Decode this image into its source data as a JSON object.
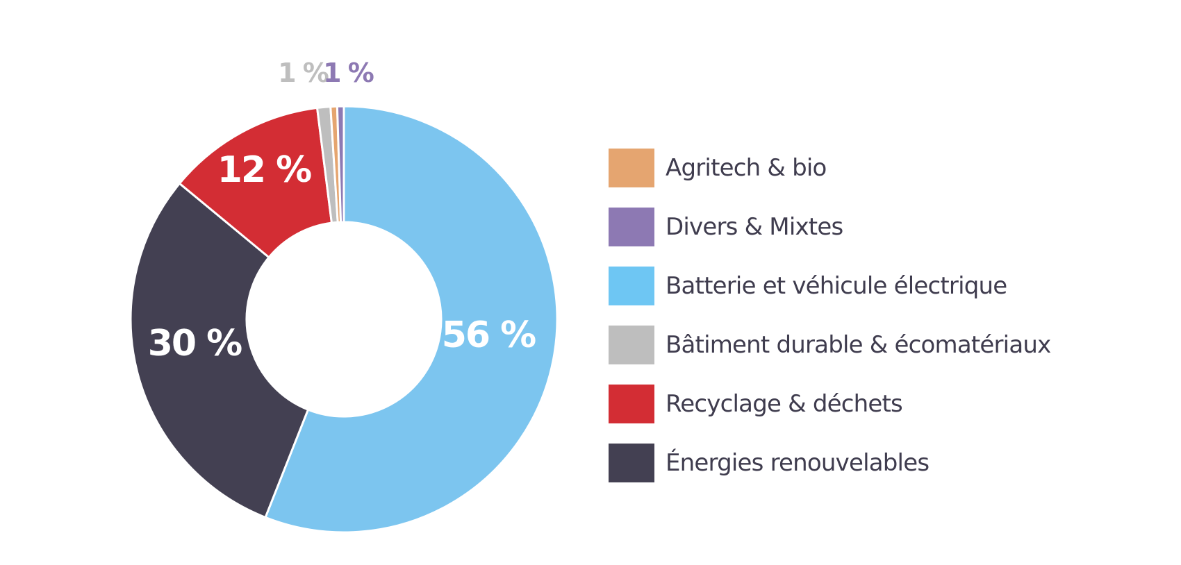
{
  "chart_data": {
    "type": "pie",
    "variant": "donut",
    "start_angle_deg": 90,
    "direction": "clockwise",
    "slices": [
      {
        "name": "Batterie et véhicule électrique",
        "value": 56,
        "label": "56 %",
        "color": "#7cc5ef"
      },
      {
        "name": "Énergies renouvelables",
        "value": 30,
        "label": "30 %",
        "color": "#434052"
      },
      {
        "name": "Recyclage & déchets",
        "value": 12,
        "label": "12 %",
        "color": "#d32d34"
      },
      {
        "name": "Bâtiment durable & écomatériaux",
        "value": 1,
        "label": "1 %",
        "color": "#bebebe"
      },
      {
        "name": "Agritech & bio",
        "value": 0.5,
        "label": "",
        "color": "#e5a570"
      },
      {
        "name": "Divers & Mixtes",
        "value": 0.5,
        "label": "1 %",
        "color": "#8d79b3"
      }
    ],
    "legend": {
      "position": "right",
      "items": [
        {
          "label": "Agritech & bio",
          "color": "#e5a570"
        },
        {
          "label": "Divers & Mixtes",
          "color": "#8d79b3"
        },
        {
          "label": "Batterie et véhicule électrique",
          "color": "#6ec6f3"
        },
        {
          "label": "Bâtiment durable & écomatériaux",
          "color": "#bebebe"
        },
        {
          "label": "Recyclage & déchets",
          "color": "#d32d34"
        },
        {
          "label": "Énergies renouvelables",
          "color": "#434052"
        }
      ]
    },
    "outside_labels_colors": [
      "#bebebe",
      "#8d79b3"
    ]
  }
}
